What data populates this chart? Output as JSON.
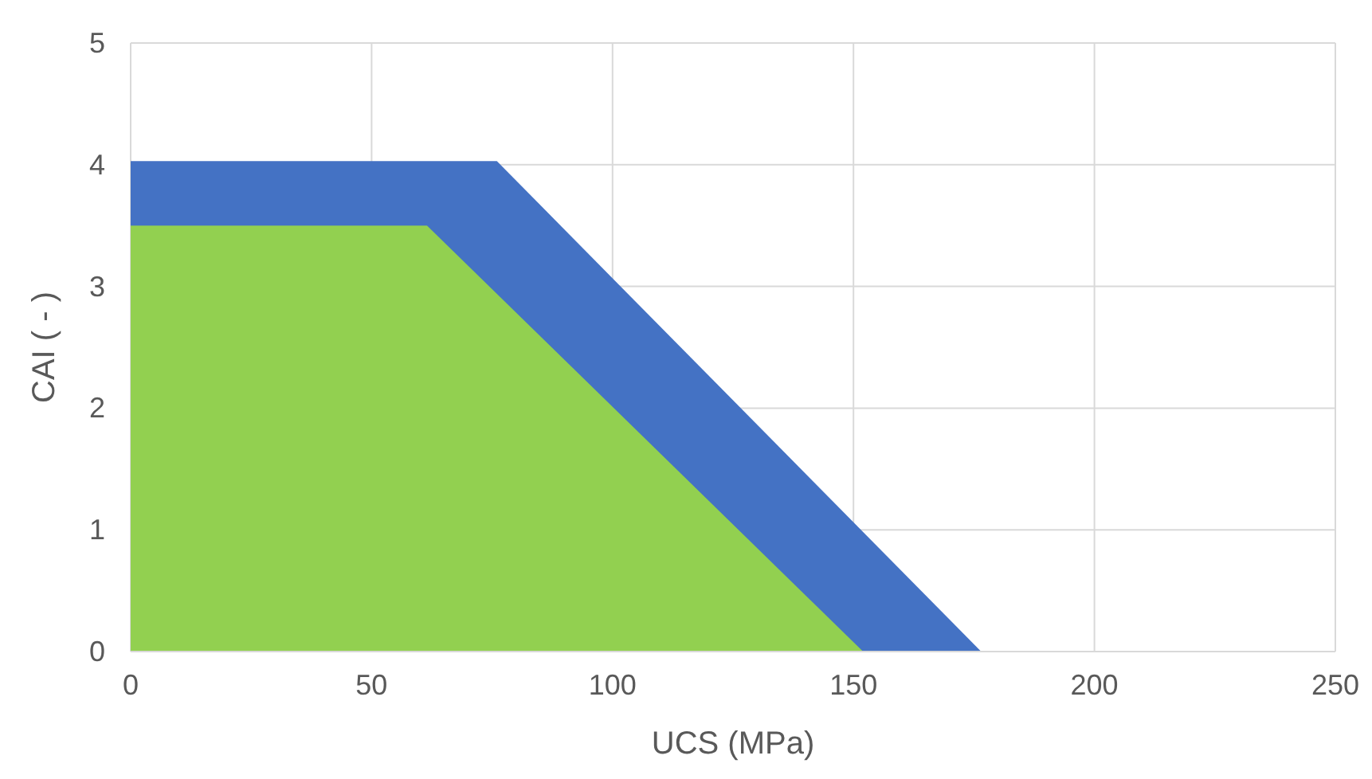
{
  "chart_data": {
    "type": "area",
    "xlabel": "UCS (MPa)",
    "ylabel": "CAI ( - )",
    "series": [
      {
        "color": "#4472c4",
        "x": [
          0,
          76,
          176.5
        ],
        "values": [
          4.03,
          4.03,
          0
        ]
      },
      {
        "color": "#92d050",
        "x": [
          0,
          61.5,
          152
        ],
        "values": [
          3.5,
          3.5,
          0
        ]
      }
    ],
    "xlim": [
      0,
      250
    ],
    "xticks": [
      0,
      50,
      100,
      150,
      200,
      250
    ],
    "ylim": [
      0,
      5
    ],
    "yticks": [
      0,
      1,
      2,
      3,
      4,
      5
    ],
    "grid": true
  }
}
